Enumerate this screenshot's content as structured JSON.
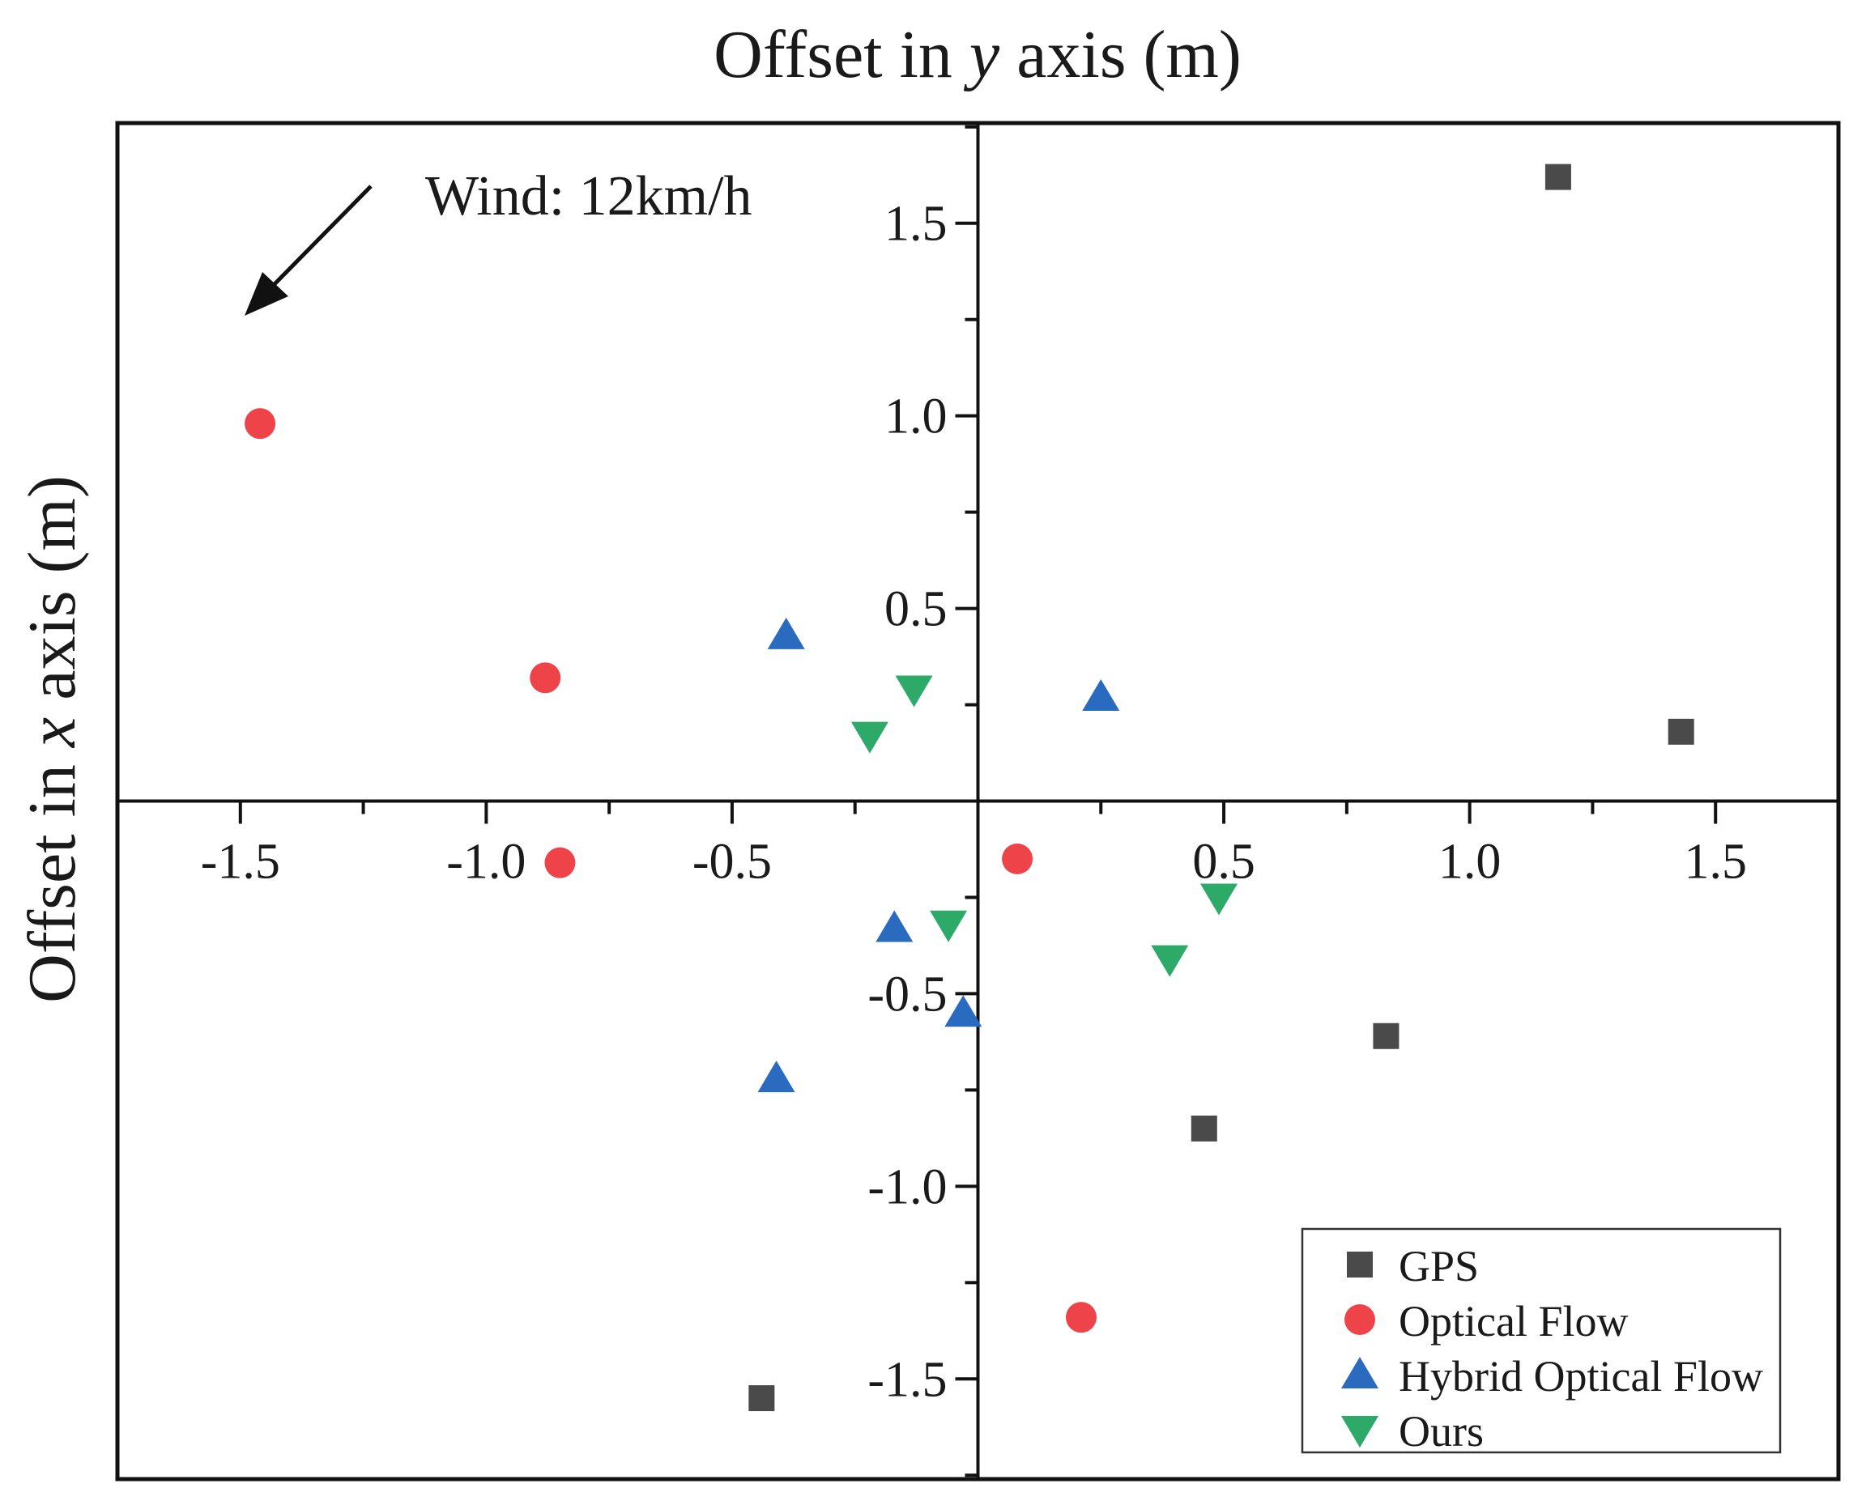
{
  "chart_data": {
    "type": "scatter",
    "title": "",
    "xlabel_parts": [
      "Offset in ",
      "y",
      " axis (m)"
    ],
    "ylabel_parts": [
      "Offset in ",
      "x",
      " axis (m)"
    ],
    "xlim": [
      -1.75,
      1.75
    ],
    "ylim": [
      -1.76,
      1.76
    ],
    "x_ticks": [
      -1.5,
      -1.0,
      -0.5,
      0.5,
      1.0,
      1.5
    ],
    "x_tick_labels": [
      "-1.5",
      "-1.0",
      "-0.5",
      "0.5",
      "1.0",
      "1.5"
    ],
    "y_ticks": [
      1.5,
      1.0,
      0.5,
      -0.5,
      -1.0,
      -1.5
    ],
    "y_tick_labels": [
      "1.5",
      "1.0",
      "0.5",
      "-0.5",
      "-1.0",
      "-1.5"
    ],
    "grid": false,
    "legend_position": "bottom-right",
    "annotation": {
      "text": "Wind: 12km/h",
      "arrow_direction": "down-left"
    },
    "series": [
      {
        "name": "GPS",
        "marker": "square",
        "color": "#4a4a4a",
        "points": [
          [
            1.18,
            1.62
          ],
          [
            1.43,
            0.18
          ],
          [
            0.83,
            -0.61
          ],
          [
            0.46,
            -0.85
          ],
          [
            -0.44,
            -1.55
          ]
        ]
      },
      {
        "name": "Optical Flow",
        "marker": "circle",
        "color": "#ef434a",
        "points": [
          [
            -1.46,
            0.98
          ],
          [
            -0.88,
            0.32
          ],
          [
            -0.85,
            -0.16
          ],
          [
            0.08,
            -0.15
          ],
          [
            0.21,
            -1.34
          ]
        ]
      },
      {
        "name": "Hybrid Optical Flow",
        "marker": "triangle-up",
        "color": "#2a6bbf",
        "points": [
          [
            -0.39,
            0.43
          ],
          [
            0.25,
            0.27
          ],
          [
            -0.17,
            -0.33
          ],
          [
            -0.03,
            -0.55
          ],
          [
            -0.41,
            -0.72
          ]
        ]
      },
      {
        "name": "Ours",
        "marker": "triangle-down",
        "color": "#2daa68",
        "points": [
          [
            -0.13,
            0.29
          ],
          [
            -0.22,
            0.17
          ],
          [
            -0.06,
            -0.32
          ],
          [
            0.49,
            -0.25
          ],
          [
            0.39,
            -0.41
          ]
        ]
      }
    ]
  }
}
